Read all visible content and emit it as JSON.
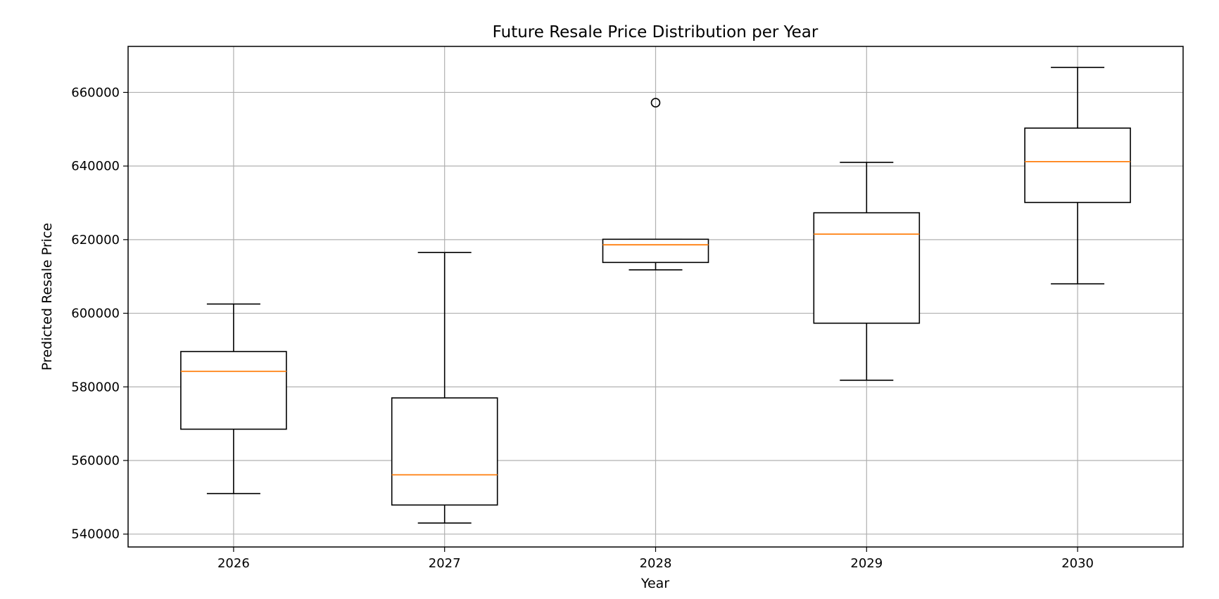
{
  "chart_data": {
    "type": "box",
    "title": "Future Resale Price Distribution per Year",
    "xlabel": "Year",
    "ylabel": "Predicted Resale Price",
    "categories": [
      "2026",
      "2027",
      "2028",
      "2029",
      "2030"
    ],
    "ylim": [
      536500,
      672500
    ],
    "yticks": [
      540000,
      560000,
      580000,
      600000,
      620000,
      640000,
      660000
    ],
    "ytick_labels": [
      "540000",
      "560000",
      "580000",
      "600000",
      "620000",
      "640000",
      "660000"
    ],
    "grid": true,
    "boxes": [
      {
        "label": "2026",
        "whisker_low": 551000,
        "q1": 568500,
        "median": 584200,
        "q3": 589600,
        "whisker_high": 602500,
        "outliers": []
      },
      {
        "label": "2027",
        "whisker_low": 543000,
        "q1": 547900,
        "median": 556100,
        "q3": 577000,
        "whisker_high": 616500,
        "outliers": []
      },
      {
        "label": "2028",
        "whisker_low": 611800,
        "q1": 613800,
        "median": 618600,
        "q3": 620100,
        "whisker_high": 620100,
        "outliers": [
          657200
        ]
      },
      {
        "label": "2029",
        "whisker_low": 581800,
        "q1": 597300,
        "median": 621500,
        "q3": 627300,
        "whisker_high": 641000,
        "outliers": []
      },
      {
        "label": "2030",
        "whisker_low": 608000,
        "q1": 630100,
        "median": 641200,
        "q3": 650300,
        "whisker_high": 666800,
        "outliers": []
      }
    ],
    "colors": {
      "box": "#000000",
      "median": "#ff7f0e",
      "grid": "#b0b0b0",
      "outlier": "#000000"
    }
  }
}
